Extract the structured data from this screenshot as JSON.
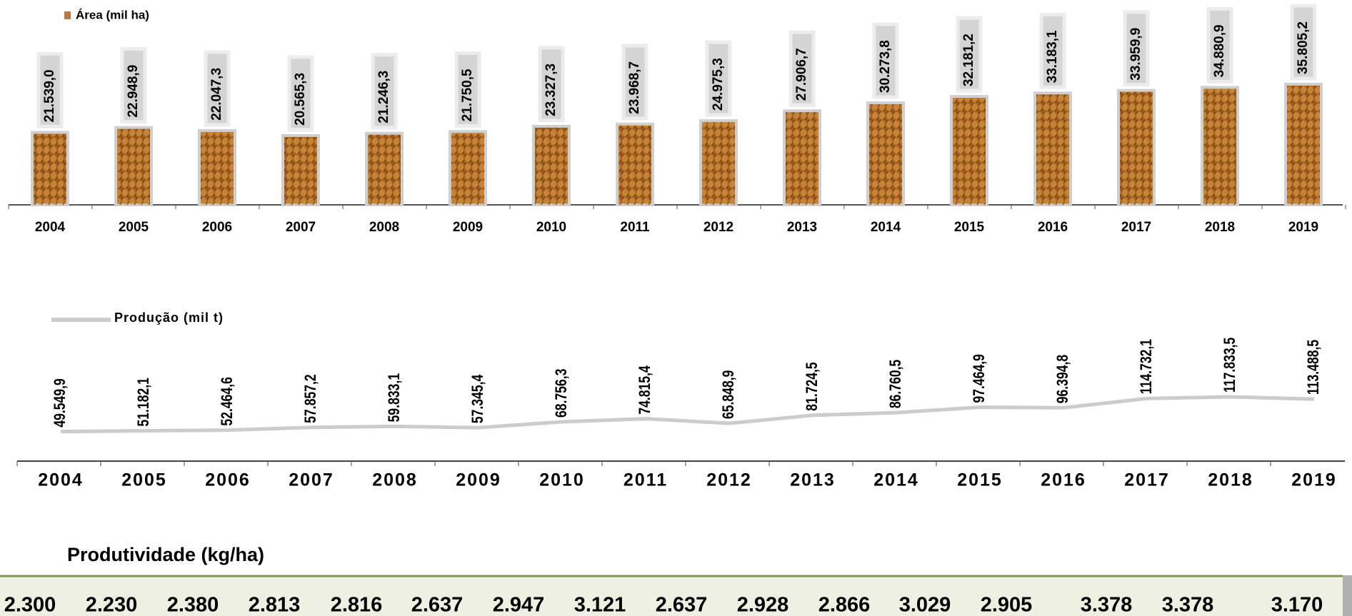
{
  "chart_data": [
    {
      "type": "bar",
      "legend": "Área (mil ha)",
      "color": "#a8641f",
      "categories": [
        "2004",
        "2005",
        "2006",
        "2007",
        "2008",
        "2009",
        "2010",
        "2011",
        "2012",
        "2013",
        "2014",
        "2015",
        "2016",
        "2017",
        "2018",
        "2019"
      ],
      "values": [
        21539.0,
        22948.9,
        22047.3,
        20565.3,
        21246.3,
        21750.5,
        23327.3,
        23968.7,
        24975.3,
        27906.7,
        30273.8,
        32181.2,
        33183.1,
        33959.9,
        34880.9,
        35805.2
      ],
      "value_labels": [
        "21.539,0",
        "22.948,9",
        "22.047,3",
        "20.565,3",
        "21.246,3",
        "21.750,5",
        "23.327,3",
        "23.968,7",
        "24.975,3",
        "27.906,7",
        "30.273,8",
        "32.181,2",
        "33.183,1",
        "33.959,9",
        "34.880,9",
        "35.805,2"
      ]
    },
    {
      "type": "line",
      "legend": "Produção (mil t)",
      "color": "#cccccc",
      "categories": [
        "2004",
        "2005",
        "2006",
        "2007",
        "2008",
        "2009",
        "2010",
        "2011",
        "2012",
        "2013",
        "2014",
        "2015",
        "2016",
        "2017",
        "2018",
        "2019"
      ],
      "values": [
        49549.9,
        51182.1,
        52464.6,
        57857.2,
        59833.1,
        57345.4,
        68756.3,
        74815.4,
        65848.9,
        81724.5,
        86760.5,
        97464.9,
        96394.8,
        114732.1,
        117833.5,
        113488.5
      ],
      "value_labels": [
        "49.549,9",
        "51.182,1",
        "52.464,6",
        "57.857,2",
        "59.833,1",
        "57.345,4",
        "68.756,3",
        "74.815,4",
        "65.848,9",
        "81.724,5",
        "86.760,5",
        "97.464,9",
        "96.394,8",
        "114.732,1",
        "117.833,5",
        "113.488,5"
      ]
    }
  ],
  "table": {
    "title": "Produtividade (kg/ha)",
    "cells": [
      "2.300",
      "2.230",
      "2.380",
      "2.813",
      "2.816",
      "2.637",
      "2.947",
      "3.121",
      "2.637",
      "2.928",
      "2.866",
      "3.029",
      "2.905",
      "3.378",
      "3.378",
      "3.170"
    ]
  }
}
